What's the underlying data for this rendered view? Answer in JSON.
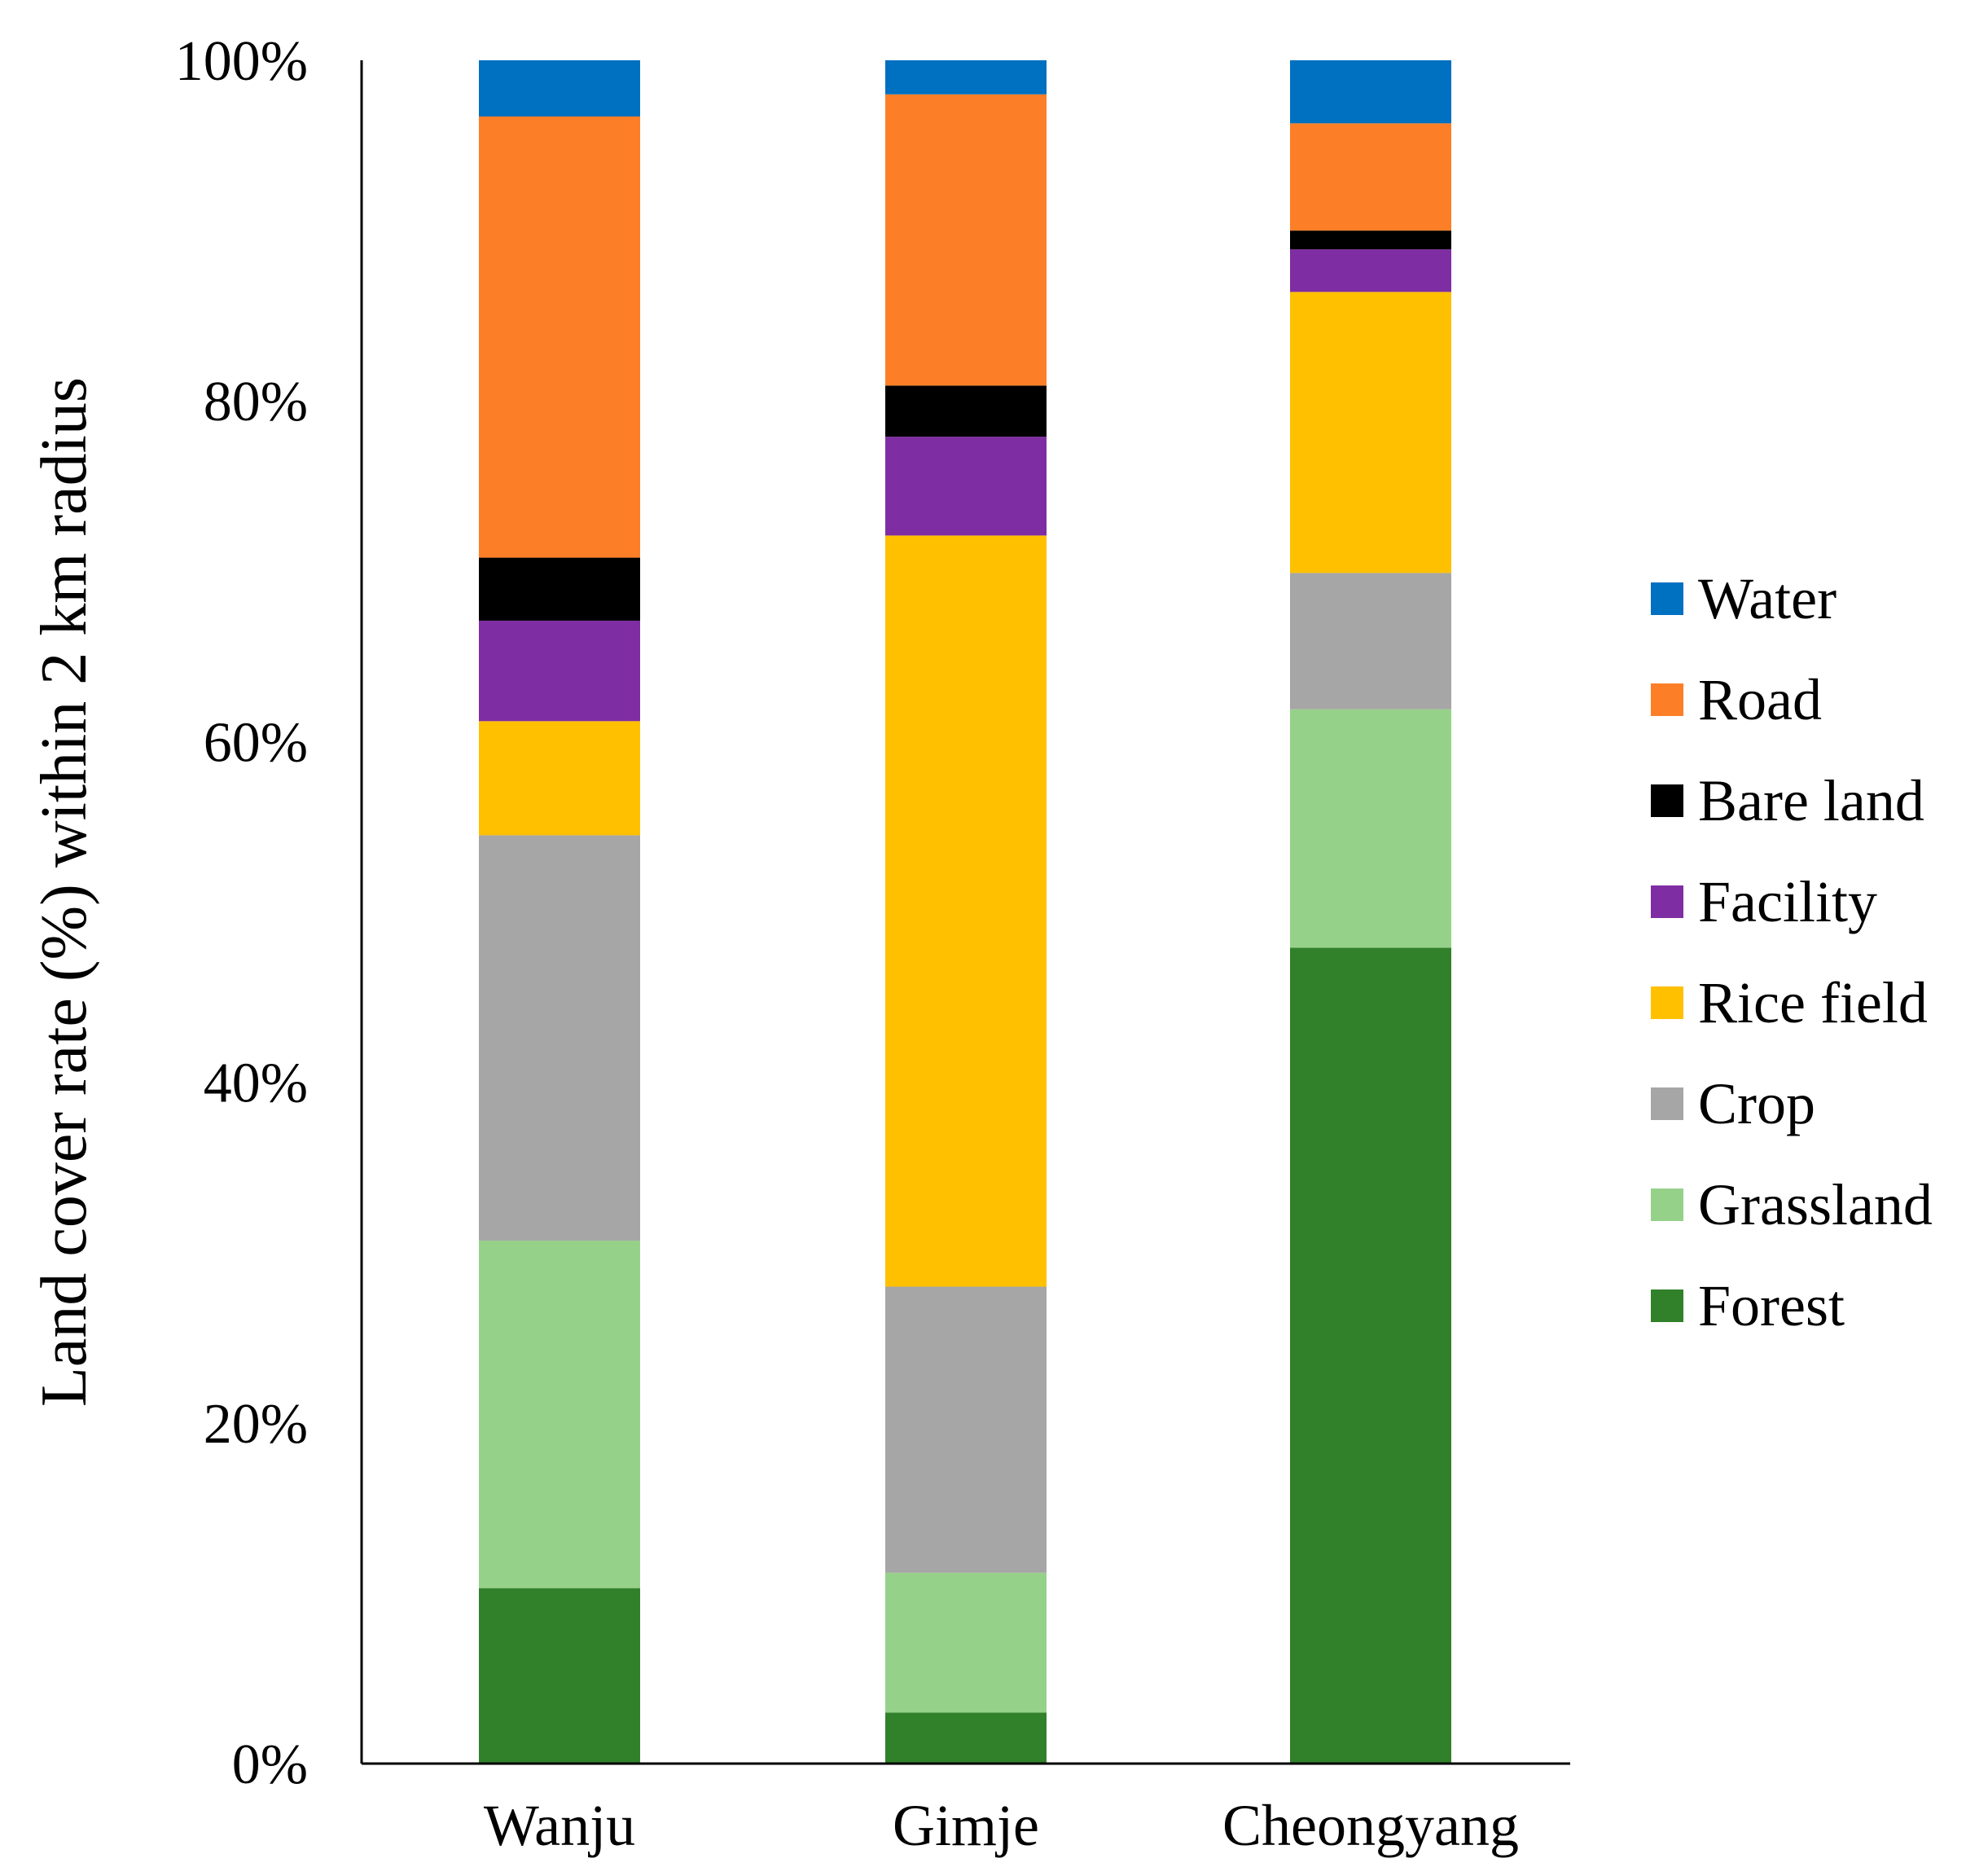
{
  "chart_data": {
    "type": "bar",
    "stacked": true,
    "title": "",
    "xlabel": "",
    "ylabel": "Land cover rate (%) within 2 km radius",
    "ylim": [
      0,
      100
    ],
    "yticks": [
      "0%",
      "20%",
      "40%",
      "60%",
      "80%",
      "100%"
    ],
    "categories": [
      "Wanju",
      "Gimje",
      "Cheongyang"
    ],
    "legend_position": "right",
    "grid": false,
    "series": [
      {
        "name": "Forest",
        "color": "#31812A",
        "values": [
          10.3,
          3.0,
          47.9
        ]
      },
      {
        "name": "Grassland",
        "color": "#96D18A",
        "values": [
          20.4,
          8.2,
          14.0
        ]
      },
      {
        "name": "Crop",
        "color": "#A6A6A6",
        "values": [
          23.8,
          16.8,
          8.0
        ]
      },
      {
        "name": "Rice field",
        "color": "#FFC000",
        "values": [
          6.7,
          44.1,
          16.5
        ]
      },
      {
        "name": "Facility",
        "color": "#7F2DA2",
        "values": [
          5.9,
          5.8,
          2.5
        ]
      },
      {
        "name": "Bare land",
        "color": "#000000",
        "values": [
          3.7,
          3.0,
          1.1
        ]
      },
      {
        "name": "Road",
        "color": "#FC7F27",
        "values": [
          25.9,
          17.1,
          6.3
        ]
      },
      {
        "name": "Water",
        "color": "#0070C0",
        "values": [
          3.3,
          2.0,
          3.7
        ]
      }
    ]
  }
}
